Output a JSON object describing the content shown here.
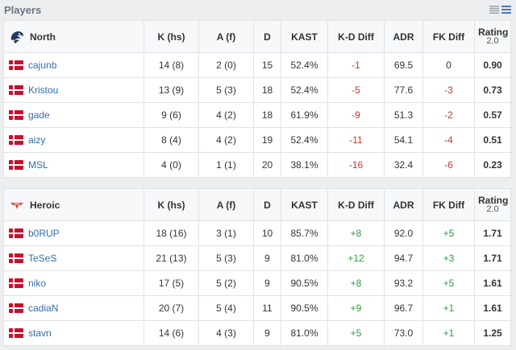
{
  "header": {
    "title": "Players"
  },
  "columns": [
    "K (hs)",
    "A (f)",
    "D",
    "KAST",
    "K-D Diff",
    "ADR",
    "FK Diff",
    "Rating",
    "2.0"
  ],
  "teams": [
    {
      "name": "North",
      "accent": "#1f3b5b",
      "players": [
        {
          "name": "cajunb",
          "kills": "14 (8)",
          "assists": "2 (0)",
          "deaths": "15",
          "kast": "52.4%",
          "kd_diff": "-1",
          "adr": "69.5",
          "fk_diff": "0",
          "rating": "0.90"
        },
        {
          "name": "Kristou",
          "kills": "13 (9)",
          "assists": "5 (3)",
          "deaths": "18",
          "kast": "52.4%",
          "kd_diff": "-5",
          "adr": "77.6",
          "fk_diff": "-3",
          "rating": "0.73"
        },
        {
          "name": "gade",
          "kills": "9 (6)",
          "assists": "4 (2)",
          "deaths": "18",
          "kast": "61.9%",
          "kd_diff": "-9",
          "adr": "51.3",
          "fk_diff": "-2",
          "rating": "0.57"
        },
        {
          "name": "aizy",
          "kills": "8 (4)",
          "assists": "4 (2)",
          "deaths": "19",
          "kast": "52.4%",
          "kd_diff": "-11",
          "adr": "54.1",
          "fk_diff": "-4",
          "rating": "0.51"
        },
        {
          "name": "MSL",
          "kills": "4 (0)",
          "assists": "1 (1)",
          "deaths": "20",
          "kast": "38.1%",
          "kd_diff": "-16",
          "adr": "32.4",
          "fk_diff": "-6",
          "rating": "0.23"
        }
      ]
    },
    {
      "name": "Heroic",
      "accent": "#e0463e",
      "players": [
        {
          "name": "b0RUP",
          "kills": "18 (16)",
          "assists": "3 (1)",
          "deaths": "10",
          "kast": "85.7%",
          "kd_diff": "+8",
          "adr": "92.0",
          "fk_diff": "+5",
          "rating": "1.71"
        },
        {
          "name": "TeSeS",
          "kills": "21 (13)",
          "assists": "5 (3)",
          "deaths": "9",
          "kast": "81.0%",
          "kd_diff": "+12",
          "adr": "94.7",
          "fk_diff": "+3",
          "rating": "1.71"
        },
        {
          "name": "niko",
          "kills": "17 (5)",
          "assists": "5 (2)",
          "deaths": "9",
          "kast": "90.5%",
          "kd_diff": "+8",
          "adr": "93.2",
          "fk_diff": "+5",
          "rating": "1.61"
        },
        {
          "name": "cadiaN",
          "kills": "20 (7)",
          "assists": "5 (4)",
          "deaths": "11",
          "kast": "90.5%",
          "kd_diff": "+9",
          "adr": "96.7",
          "fk_diff": "+1",
          "rating": "1.61"
        },
        {
          "name": "stavn",
          "kills": "14 (6)",
          "assists": "4 (3)",
          "deaths": "9",
          "kast": "81.0%",
          "kd_diff": "+5",
          "adr": "73.0",
          "fk_diff": "+1",
          "rating": "1.25"
        }
      ]
    }
  ],
  "colors": {
    "negative": "#c0392b",
    "positive": "#2e9a3c",
    "link": "#2f6ea8"
  },
  "icons": {
    "view_toggle_1": "list-compact-icon",
    "view_toggle_2": "list-expanded-icon",
    "flag": "denmark-flag-icon"
  }
}
